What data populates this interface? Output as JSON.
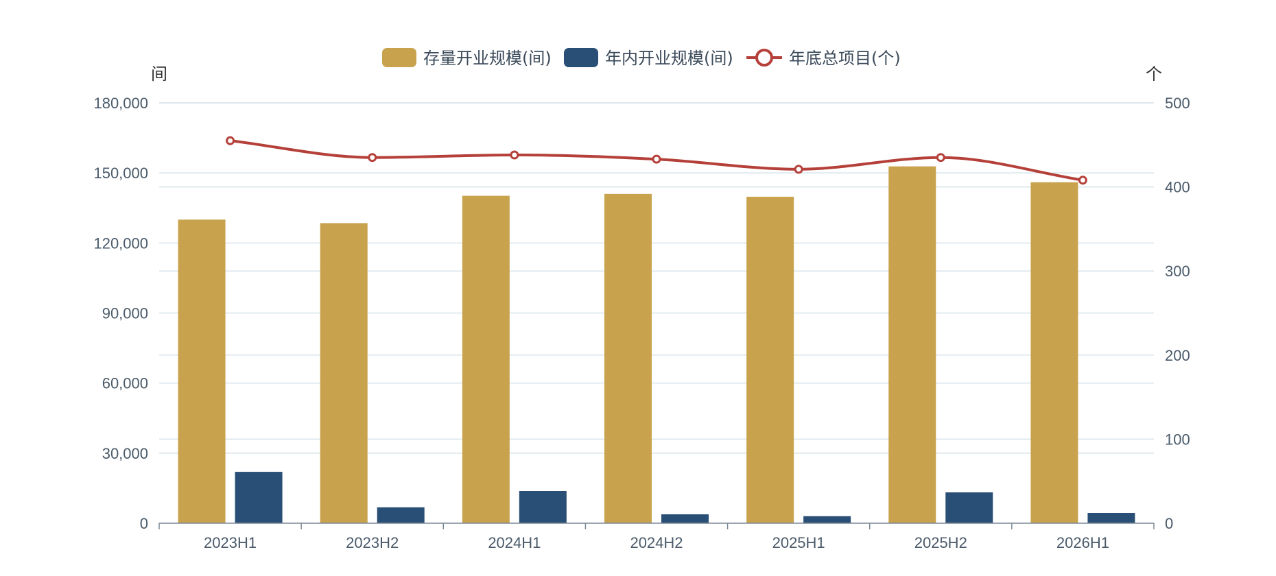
{
  "chart_data": {
    "type": "bar",
    "categories": [
      "2023H1",
      "2023H2",
      "2024H1",
      "2024H2",
      "2025H1",
      "2025H2",
      "2026H1"
    ],
    "series": [
      {
        "name": "存量开业规模(间)",
        "type": "bar",
        "axis": "left",
        "color": "#C9A24D",
        "values": [
          130000,
          128500,
          140200,
          141000,
          139800,
          152800,
          146000
        ]
      },
      {
        "name": "年内开业规模(间)",
        "type": "bar",
        "axis": "left",
        "color": "#2A4F76",
        "values": [
          22000,
          6800,
          13800,
          3800,
          3000,
          13200,
          4400
        ]
      },
      {
        "name": "年底总项目(个)",
        "type": "line",
        "axis": "right",
        "color": "#B5403A",
        "values": [
          455,
          435,
          438,
          433,
          421,
          435,
          408
        ]
      }
    ],
    "left_axis": {
      "unit": "间",
      "min": 0,
      "max": 180000,
      "ticks": [
        "0",
        "30,000",
        "60,000",
        "90,000",
        "120,000",
        "150,000",
        "180,000"
      ]
    },
    "right_axis": {
      "unit": "个",
      "min": 0,
      "max": 500,
      "ticks": [
        "0",
        "100",
        "200",
        "300",
        "400",
        "500"
      ]
    },
    "legend_position": "top-center",
    "grid": true
  }
}
